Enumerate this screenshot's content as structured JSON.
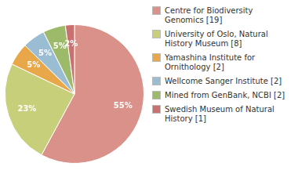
{
  "chart_data": {
    "type": "pie",
    "categories": [
      "Centre for Biodiversity\nGenomics [19]",
      "University of Oslo, Natural\nHistory Museum [8]",
      "Yamashina Institute for\nOrnithology [2]",
      "Wellcome Sanger Institute [2]",
      "Mined from GenBank, NCBI [2]",
      "Swedish Museum of Natural\nHistory [1]"
    ],
    "values": [
      55,
      23,
      5,
      5,
      5,
      2
    ],
    "value_labels": [
      "55%",
      "23%",
      "5%",
      "5%",
      "5%",
      "2%"
    ],
    "colors": [
      "#d9918a",
      "#c8cf7a",
      "#e8a84a",
      "#9bbdd4",
      "#9cba6a",
      "#c97070"
    ],
    "data_labels": true,
    "legend": "right"
  }
}
